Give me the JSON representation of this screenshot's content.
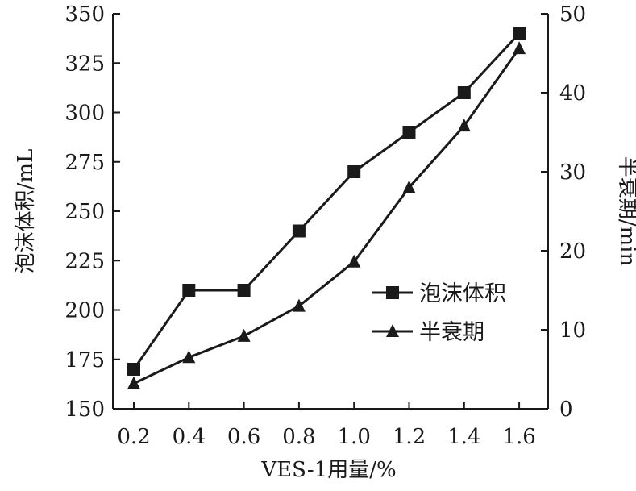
{
  "chart_data": {
    "type": "line",
    "categories": [
      "0.2",
      "0.4",
      "0.6",
      "0.8",
      "1.0",
      "1.2",
      "1.4",
      "1.6"
    ],
    "xlabel": "VES-1用量/%",
    "ylabel_left": "泡沫体积/mL",
    "ylabel_right": "半衰期/min",
    "ylim_left": [
      150,
      350
    ],
    "ylim_right": [
      0,
      50
    ],
    "yticks_left": [
      "150",
      "175",
      "200",
      "225",
      "250",
      "275",
      "300",
      "325",
      "350"
    ],
    "yticks_right": [
      "0",
      "10",
      "20",
      "30",
      "40",
      "50"
    ],
    "grid": false,
    "legend_position": "lower-right",
    "series": [
      {
        "name": "泡沫体积",
        "axis": "left",
        "marker": "square",
        "values": [
          170,
          210,
          210,
          240,
          270,
          290,
          310,
          340
        ]
      },
      {
        "name": "半衰期",
        "axis": "right",
        "marker": "triangle",
        "values": [
          3.2,
          6.5,
          9.2,
          13.0,
          18.6,
          28.0,
          35.8,
          45.6
        ]
      }
    ],
    "colors": {
      "line": "#1a1a1a",
      "marker": "#1a1a1a"
    }
  }
}
